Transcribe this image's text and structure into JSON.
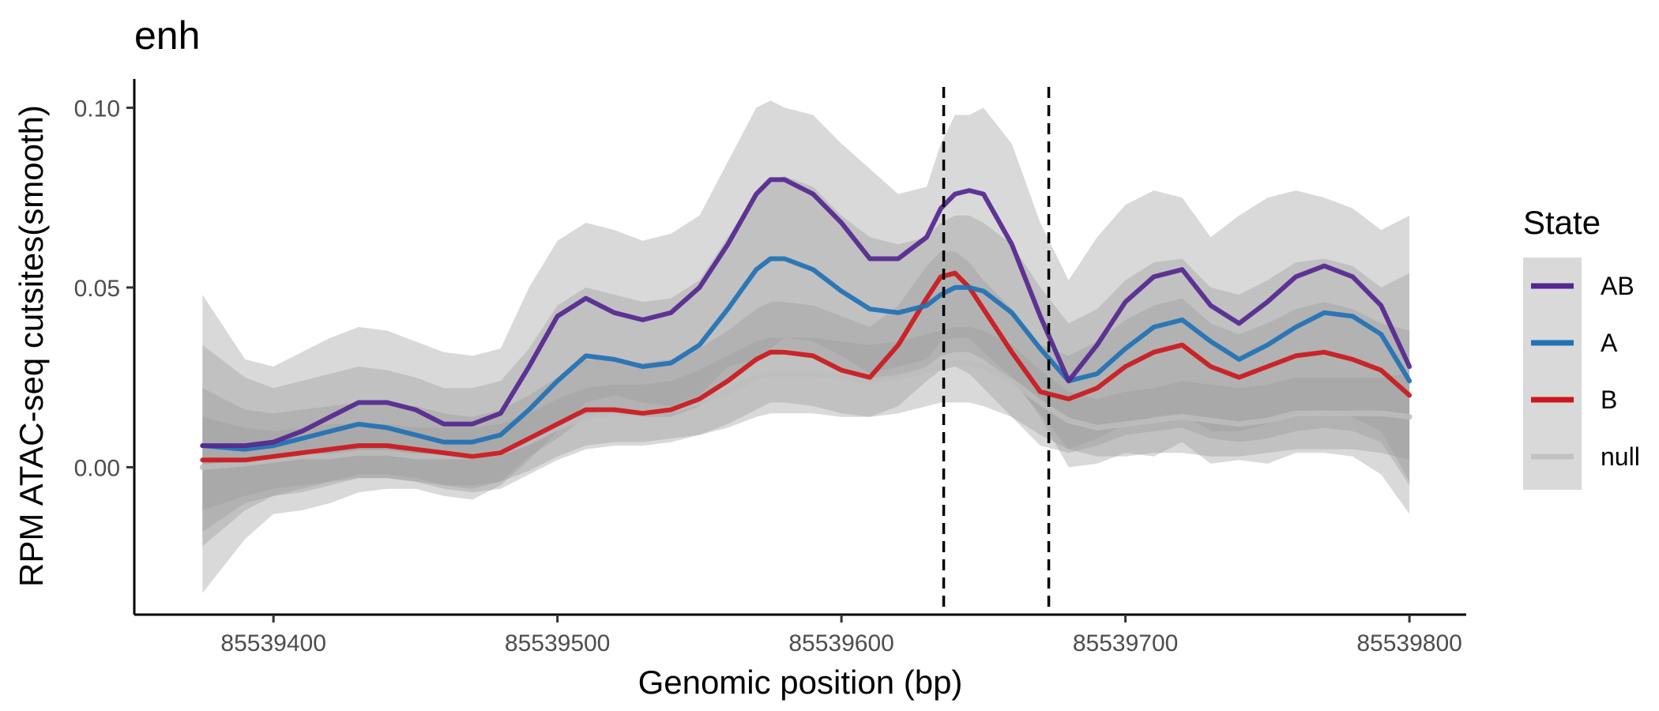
{
  "chart_data": {
    "type": "line",
    "title": "enh",
    "xlabel": "Genomic position (bp)",
    "ylabel": "RPM ATAC-seq cutsites(smooth)",
    "xlim": [
      85539351,
      85539820
    ],
    "ylim": [
      -0.041,
      0.108
    ],
    "x_ticks": [
      85539400,
      85539500,
      85539600,
      85539700,
      85539800
    ],
    "x_tick_labels": [
      "85539400",
      "85539500",
      "85539600",
      "85539700",
      "85539800"
    ],
    "y_ticks": [
      0.0,
      0.05,
      0.1
    ],
    "y_tick_labels": [
      "0.00",
      "0.05",
      "0.10"
    ],
    "vlines": [
      85539636,
      85539673
    ],
    "grid": false,
    "legend": {
      "title": "State",
      "position": "right"
    },
    "x": [
      85539375,
      85539390,
      85539400,
      85539410,
      85539420,
      85539430,
      85539440,
      85539450,
      85539460,
      85539470,
      85539480,
      85539490,
      85539500,
      85539510,
      85539520,
      85539530,
      85539540,
      85539550,
      85539560,
      85539570,
      85539575,
      85539580,
      85539590,
      85539600,
      85539610,
      85539620,
      85539630,
      85539635,
      85539640,
      85539645,
      85539650,
      85539660,
      85539670,
      85539680,
      85539690,
      85539700,
      85539710,
      85539720,
      85539730,
      85539740,
      85539750,
      85539760,
      85539770,
      85539780,
      85539790,
      85539800
    ],
    "series": [
      {
        "name": "AB",
        "color": "#54278f",
        "values": [
          0.006,
          0.006,
          0.007,
          0.01,
          0.014,
          0.018,
          0.018,
          0.016,
          0.012,
          0.012,
          0.015,
          0.028,
          0.042,
          0.047,
          0.043,
          0.041,
          0.043,
          0.05,
          0.062,
          0.076,
          0.08,
          0.08,
          0.076,
          0.068,
          0.058,
          0.058,
          0.064,
          0.072,
          0.076,
          0.077,
          0.076,
          0.062,
          0.042,
          0.024,
          0.034,
          0.046,
          0.053,
          0.055,
          0.045,
          0.04,
          0.046,
          0.053,
          0.056,
          0.053,
          0.045,
          0.028
        ]
      },
      {
        "name": "A",
        "color": "#2171b5",
        "values": [
          0.006,
          0.005,
          0.006,
          0.008,
          0.01,
          0.012,
          0.011,
          0.009,
          0.007,
          0.007,
          0.009,
          0.016,
          0.024,
          0.031,
          0.03,
          0.028,
          0.029,
          0.034,
          0.044,
          0.055,
          0.058,
          0.058,
          0.055,
          0.049,
          0.044,
          0.043,
          0.045,
          0.048,
          0.05,
          0.05,
          0.049,
          0.043,
          0.033,
          0.024,
          0.026,
          0.033,
          0.039,
          0.041,
          0.035,
          0.03,
          0.034,
          0.039,
          0.043,
          0.042,
          0.037,
          0.024
        ]
      },
      {
        "name": "B",
        "color": "#cb181d",
        "values": [
          0.002,
          0.002,
          0.003,
          0.004,
          0.005,
          0.006,
          0.006,
          0.005,
          0.004,
          0.003,
          0.004,
          0.008,
          0.012,
          0.016,
          0.016,
          0.015,
          0.016,
          0.019,
          0.024,
          0.03,
          0.032,
          0.032,
          0.031,
          0.027,
          0.025,
          0.034,
          0.047,
          0.053,
          0.054,
          0.05,
          0.044,
          0.032,
          0.021,
          0.019,
          0.022,
          0.028,
          0.032,
          0.034,
          0.028,
          0.025,
          0.028,
          0.031,
          0.032,
          0.03,
          0.027,
          0.02
        ]
      },
      {
        "name": "null",
        "color": "#bdbdbd",
        "values": [
          0.0,
          0.001,
          0.002,
          0.003,
          0.003,
          0.004,
          0.004,
          0.003,
          0.003,
          0.003,
          0.004,
          0.007,
          0.011,
          0.014,
          0.015,
          0.015,
          0.016,
          0.018,
          0.021,
          0.025,
          0.026,
          0.026,
          0.026,
          0.025,
          0.024,
          0.025,
          0.027,
          0.028,
          0.029,
          0.029,
          0.028,
          0.024,
          0.018,
          0.013,
          0.011,
          0.012,
          0.013,
          0.014,
          0.013,
          0.012,
          0.013,
          0.015,
          0.015,
          0.015,
          0.015,
          0.014
        ]
      }
    ],
    "bands": [
      {
        "name": "AB-band",
        "lower": [
          -0.035,
          -0.02,
          -0.013,
          -0.012,
          -0.01,
          -0.007,
          -0.006,
          -0.006,
          -0.008,
          -0.009,
          -0.005,
          0.002,
          0.01,
          0.018,
          0.02,
          0.018,
          0.017,
          0.02,
          0.028,
          0.03,
          0.033,
          0.036,
          0.035,
          0.031,
          0.026,
          0.028,
          0.03,
          0.035,
          0.036,
          0.036,
          0.032,
          0.025,
          0.014,
          0.0,
          0.001,
          0.004,
          0.003,
          0.007,
          0.001,
          0.002,
          0.001,
          0.004,
          0.004,
          0.003,
          -0.002,
          -0.013
        ],
        "upper": [
          0.048,
          0.03,
          0.028,
          0.032,
          0.036,
          0.039,
          0.038,
          0.035,
          0.032,
          0.031,
          0.033,
          0.05,
          0.063,
          0.068,
          0.066,
          0.063,
          0.065,
          0.07,
          0.085,
          0.1,
          0.102,
          0.1,
          0.098,
          0.09,
          0.083,
          0.076,
          0.078,
          0.09,
          0.098,
          0.098,
          0.1,
          0.09,
          0.068,
          0.052,
          0.064,
          0.073,
          0.077,
          0.075,
          0.064,
          0.07,
          0.075,
          0.077,
          0.075,
          0.072,
          0.066,
          0.07
        ]
      },
      {
        "name": "A-band",
        "lower": [
          -0.022,
          -0.012,
          -0.008,
          -0.006,
          -0.004,
          -0.002,
          -0.002,
          -0.003,
          -0.005,
          -0.006,
          -0.004,
          0.003,
          0.008,
          0.014,
          0.015,
          0.014,
          0.014,
          0.017,
          0.024,
          0.03,
          0.032,
          0.033,
          0.031,
          0.027,
          0.024,
          0.025,
          0.028,
          0.031,
          0.032,
          0.032,
          0.03,
          0.024,
          0.015,
          0.005,
          0.008,
          0.012,
          0.014,
          0.015,
          0.01,
          0.01,
          0.012,
          0.015,
          0.016,
          0.014,
          0.01,
          -0.004
        ],
        "upper": [
          0.034,
          0.025,
          0.022,
          0.024,
          0.026,
          0.028,
          0.027,
          0.025,
          0.022,
          0.022,
          0.024,
          0.033,
          0.045,
          0.05,
          0.048,
          0.046,
          0.047,
          0.052,
          0.064,
          0.076,
          0.08,
          0.081,
          0.078,
          0.07,
          0.064,
          0.062,
          0.064,
          0.068,
          0.07,
          0.07,
          0.068,
          0.062,
          0.05,
          0.04,
          0.044,
          0.052,
          0.057,
          0.058,
          0.05,
          0.048,
          0.052,
          0.057,
          0.058,
          0.056,
          0.05,
          0.054
        ]
      },
      {
        "name": "B-band",
        "lower": [
          -0.018,
          -0.01,
          -0.008,
          -0.007,
          -0.005,
          -0.003,
          -0.003,
          -0.004,
          -0.006,
          -0.007,
          -0.006,
          -0.002,
          0.002,
          0.005,
          0.006,
          0.006,
          0.007,
          0.009,
          0.012,
          0.016,
          0.018,
          0.018,
          0.017,
          0.015,
          0.014,
          0.017,
          0.024,
          0.027,
          0.028,
          0.026,
          0.022,
          0.014,
          0.006,
          0.004,
          0.006,
          0.009,
          0.01,
          0.011,
          0.008,
          0.007,
          0.008,
          0.01,
          0.011,
          0.01,
          0.007,
          -0.005
        ],
        "upper": [
          0.022,
          0.016,
          0.015,
          0.016,
          0.017,
          0.018,
          0.018,
          0.017,
          0.015,
          0.014,
          0.016,
          0.02,
          0.025,
          0.03,
          0.03,
          0.029,
          0.03,
          0.033,
          0.038,
          0.044,
          0.046,
          0.046,
          0.045,
          0.042,
          0.039,
          0.045,
          0.056,
          0.06,
          0.06,
          0.057,
          0.052,
          0.044,
          0.034,
          0.031,
          0.035,
          0.041,
          0.045,
          0.047,
          0.04,
          0.037,
          0.04,
          0.044,
          0.046,
          0.044,
          0.04,
          0.038
        ]
      },
      {
        "name": "null-band",
        "lower": [
          -0.012,
          -0.008,
          -0.006,
          -0.005,
          -0.004,
          -0.003,
          -0.003,
          -0.004,
          -0.005,
          -0.005,
          -0.004,
          -0.001,
          0.003,
          0.006,
          0.007,
          0.007,
          0.008,
          0.009,
          0.011,
          0.014,
          0.015,
          0.015,
          0.015,
          0.014,
          0.014,
          0.015,
          0.017,
          0.018,
          0.018,
          0.018,
          0.017,
          0.014,
          0.009,
          0.005,
          0.003,
          0.003,
          0.004,
          0.004,
          0.003,
          0.003,
          0.004,
          0.005,
          0.005,
          0.005,
          0.004,
          0.002
        ],
        "upper": [
          0.014,
          0.011,
          0.01,
          0.011,
          0.012,
          0.012,
          0.012,
          0.011,
          0.011,
          0.011,
          0.012,
          0.015,
          0.019,
          0.022,
          0.023,
          0.023,
          0.024,
          0.027,
          0.031,
          0.035,
          0.036,
          0.036,
          0.036,
          0.035,
          0.034,
          0.035,
          0.037,
          0.038,
          0.039,
          0.039,
          0.038,
          0.034,
          0.027,
          0.021,
          0.019,
          0.021,
          0.022,
          0.024,
          0.023,
          0.022,
          0.023,
          0.025,
          0.025,
          0.025,
          0.025,
          0.026
        ]
      }
    ]
  }
}
